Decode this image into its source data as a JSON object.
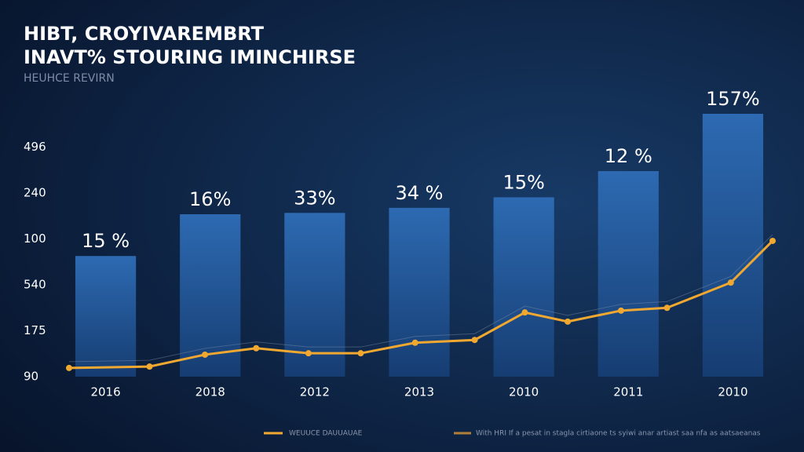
{
  "chart_data": {
    "type": "bar",
    "title": "HIBT, CROYIVAREMBRT",
    "subtitle": "INAVT% STOURING IMINCHIRSE",
    "caption": "HEUHCE REVIRN",
    "categories": [
      "2016",
      "2018",
      "2012",
      "2013",
      "2010",
      "2011",
      "2010"
    ],
    "values": [
      2.63,
      3.54,
      3.57,
      3.68,
      3.91,
      4.48,
      5.73
    ],
    "bar_labels": [
      "15 %",
      "16%",
      "33%",
      "34 %",
      "15%",
      "12 %",
      "157%"
    ],
    "color": "#2a64a8",
    "xlim": [
      -0.5,
      6.5
    ],
    "ylim": [
      0,
      6.5
    ],
    "yticks": [
      {
        "value": 0,
        "label": "90"
      },
      {
        "value": 1,
        "label": "175"
      },
      {
        "value": 2,
        "label": "540"
      },
      {
        "value": 3,
        "label": "100"
      },
      {
        "value": 4,
        "label": "240"
      },
      {
        "value": 5,
        "label": "496"
      }
    ],
    "line": {
      "name": "WEUUCE  DAUUAUAE",
      "color": "#f0a830",
      "x": [
        -0.35,
        0.42,
        0.95,
        1.44,
        1.94,
        2.44,
        2.96,
        3.53,
        4.01,
        4.42,
        4.93,
        5.37,
        5.98,
        6.38
      ],
      "values": [
        0.19,
        0.22,
        0.48,
        0.62,
        0.51,
        0.51,
        0.74,
        0.8,
        1.4,
        1.2,
        1.44,
        1.5,
        2.05,
        2.96
      ]
    },
    "legend_note": "With HRI If a pesat in stagla cirtiaone ts syiwi anar artiast saa nfa as aatsaeanas"
  }
}
